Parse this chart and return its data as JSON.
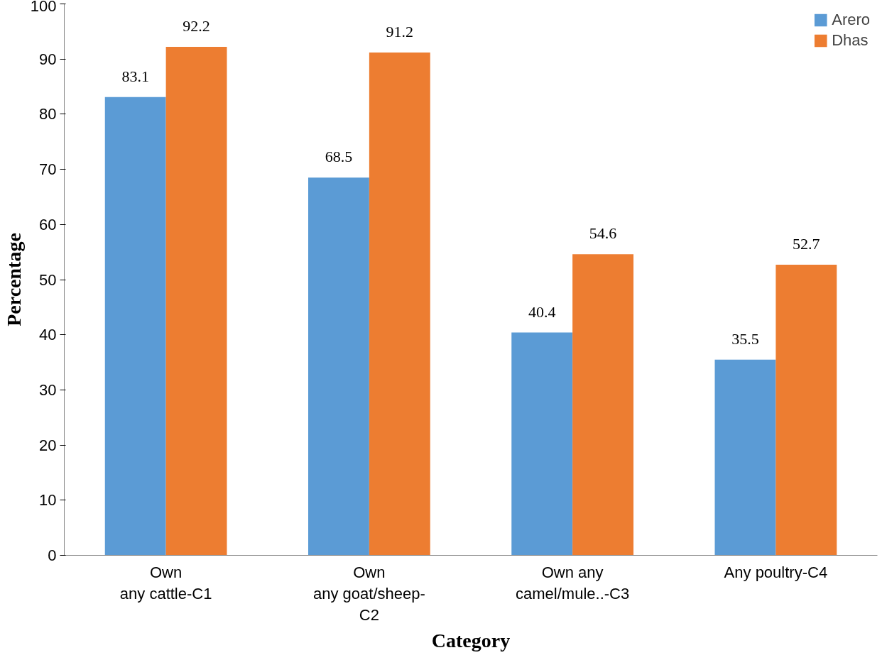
{
  "chart_data": {
    "type": "bar",
    "xlabel": "Category",
    "ylabel": "Percentage",
    "categories": [
      "Own\nany cattle-C1",
      "Own\nany goat/sheep-\nC2",
      "Own any\ncamel/mule..-C3",
      "Any poultry-C4"
    ],
    "series": [
      {
        "name": "Arero",
        "color": "#5b9bd5",
        "values": [
          83.1,
          68.5,
          40.4,
          35.5
        ]
      },
      {
        "name": "Dhas",
        "color": "#ed7d31",
        "values": [
          92.2,
          91.2,
          54.6,
          52.7
        ]
      }
    ],
    "ylim": [
      0,
      100
    ],
    "yticks": [
      0,
      10,
      20,
      30,
      40,
      50,
      60,
      70,
      80,
      90,
      100
    ],
    "data_labels": true,
    "grid": false,
    "legend": "top right"
  }
}
